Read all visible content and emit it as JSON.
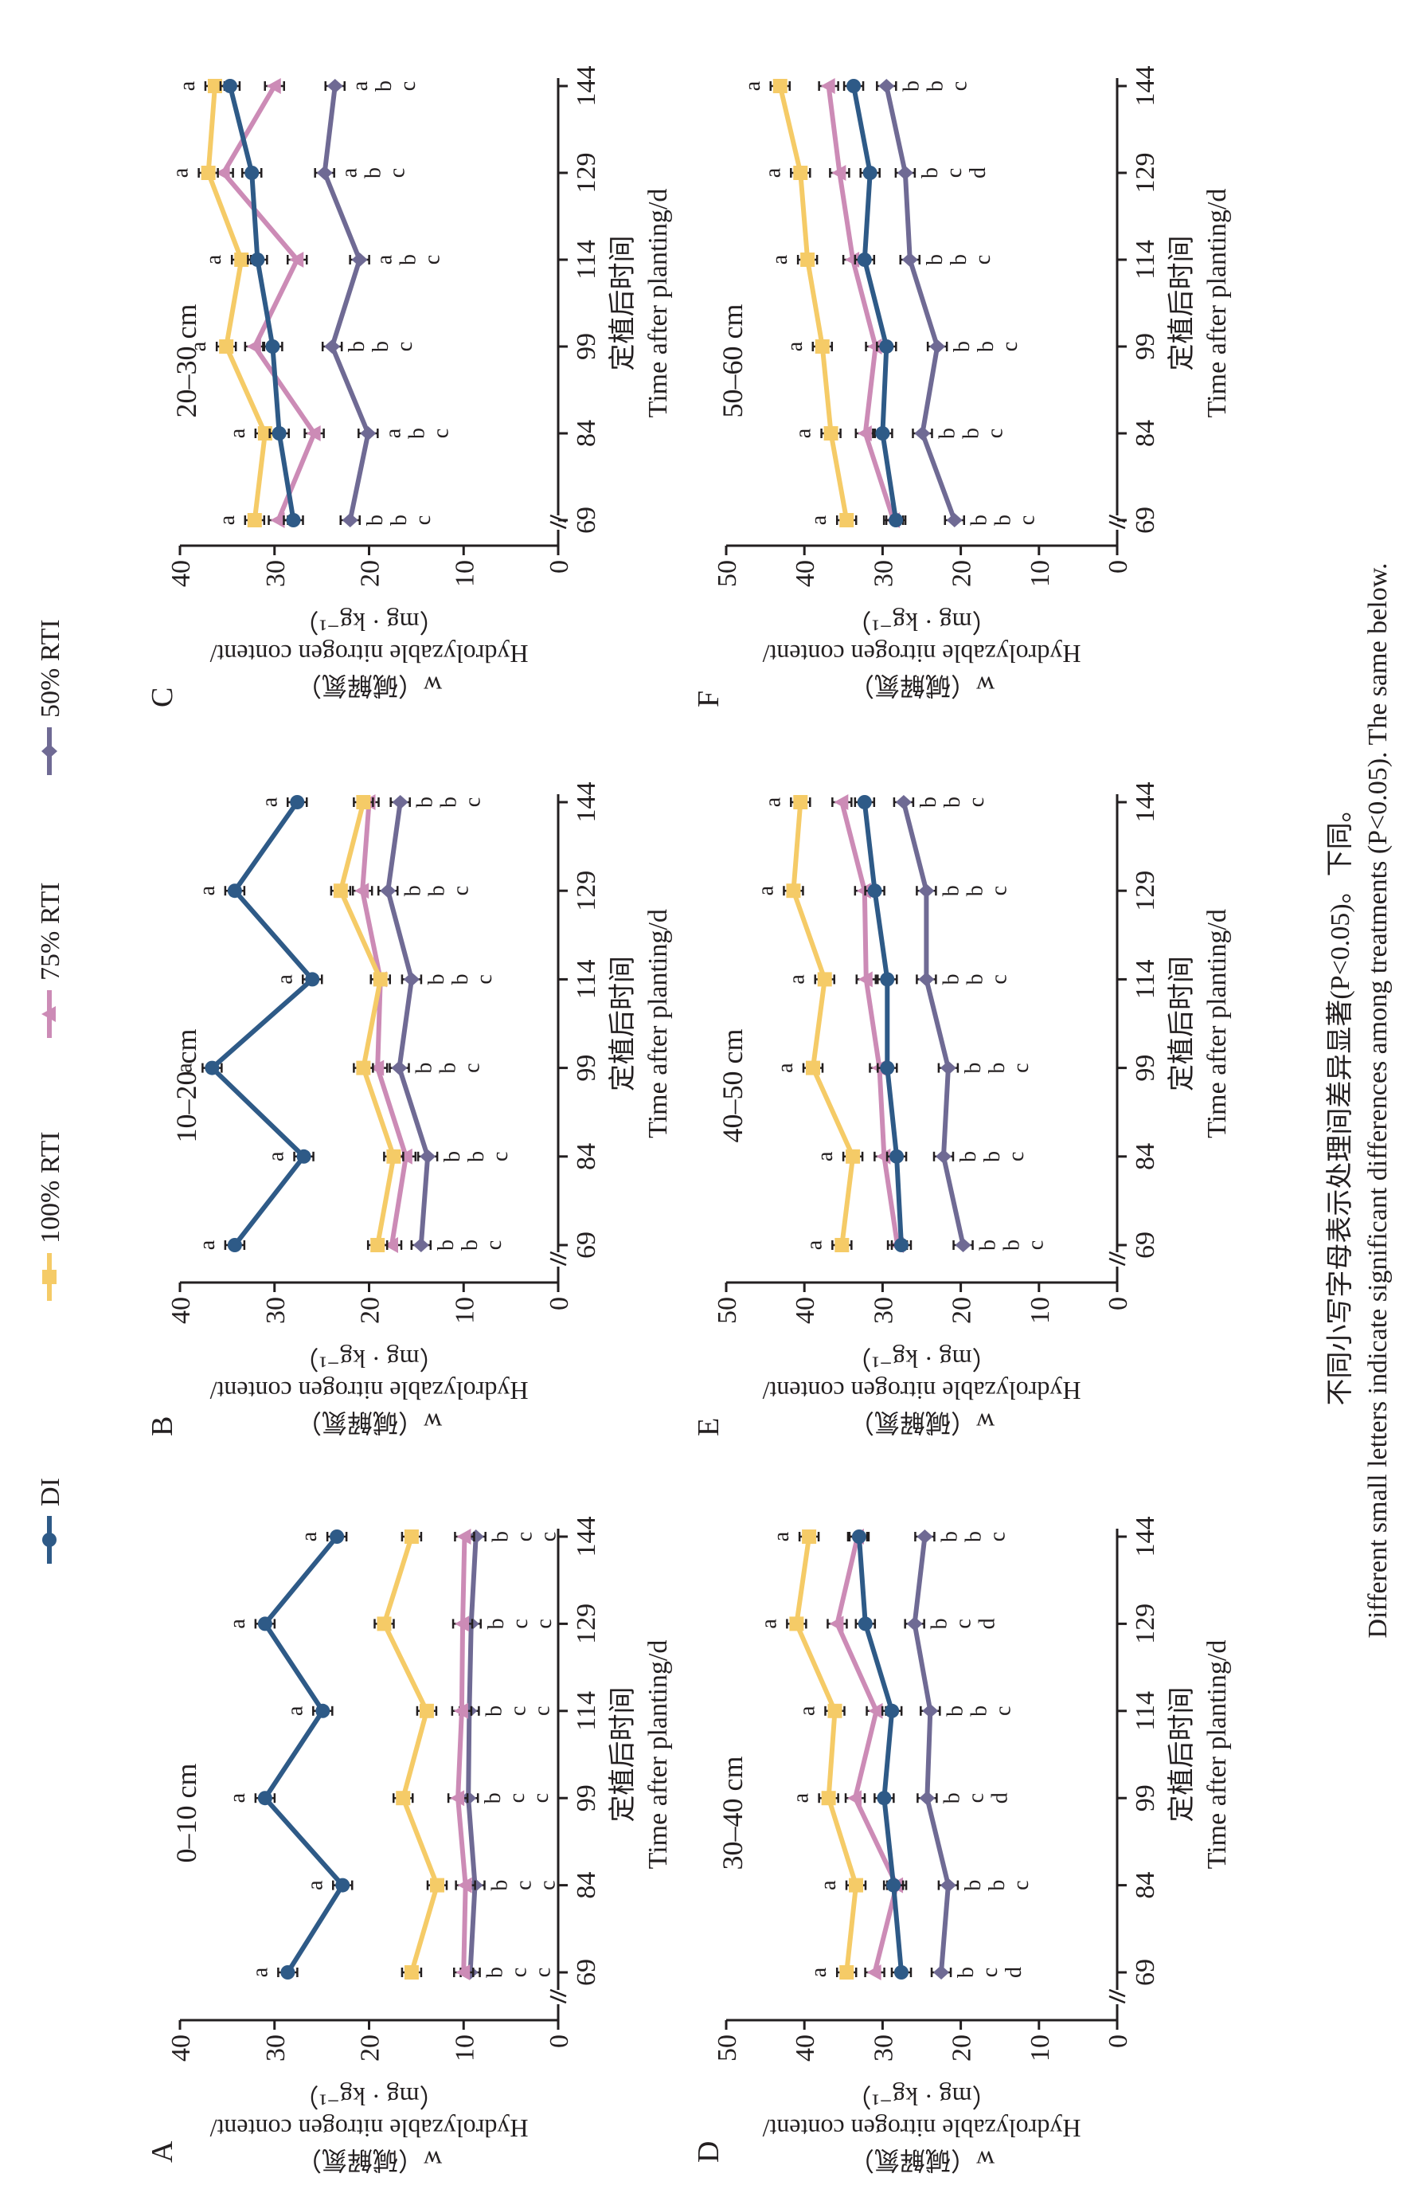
{
  "figure": {
    "caption_cn": "不同小写字母表示处理间差异显著(P<0.05)。下同。",
    "caption_en": "Different small letters indicate significant differences among treatments (P<0.05). The same below."
  },
  "legend": [
    {
      "name": "DI",
      "marker": "circle",
      "color": "#2e5a87"
    },
    {
      "name": "100% RTI",
      "marker": "square",
      "color": "#f5cb67"
    },
    {
      "name": "75% RTI",
      "marker": "triangle",
      "color": "#cc8bb6"
    },
    {
      "name": "50% RTI",
      "marker": "diamond",
      "color": "#6f6a94"
    }
  ],
  "chart_data": [
    {
      "type": "line",
      "panel": "A",
      "title": "0–10 cm",
      "xlabel_cn": "定植后时间",
      "xlabel_en": "Time after planting/d",
      "ylabel_cn": "w（碱解氮）",
      "ylabel_en": "Hydrolyzable nitrogen content/",
      "ylabel_unit": "（mg · kg⁻¹）",
      "x": [
        69,
        84,
        99,
        114,
        129,
        144
      ],
      "ylim": [
        0,
        40
      ],
      "yticks": [
        0,
        10,
        20,
        30,
        40
      ],
      "axis_break": true,
      "series": [
        {
          "name": "DI",
          "values": [
            28.6,
            22.8,
            31.0,
            24.9,
            31.0,
            23.4
          ]
        },
        {
          "name": "100% RTI",
          "values": [
            15.5,
            12.8,
            16.4,
            13.9,
            18.4,
            15.5
          ]
        },
        {
          "name": "75% RTI",
          "values": [
            10.0,
            9.8,
            10.6,
            10.2,
            10.1,
            9.9
          ]
        },
        {
          "name": "50% RTI",
          "values": [
            9.3,
            8.8,
            9.5,
            9.4,
            9.2,
            8.7
          ]
        }
      ],
      "letters": [
        [
          "a",
          "b",
          "c",
          "c"
        ],
        [
          "a",
          "b",
          "c",
          "c"
        ],
        [
          "a",
          "b",
          "c",
          "c"
        ],
        [
          "a",
          "b",
          "c",
          "c"
        ],
        [
          "a",
          "b",
          "c",
          "c"
        ],
        [
          "a",
          "b",
          "c",
          "c"
        ]
      ]
    },
    {
      "type": "line",
      "panel": "B",
      "title": "10–20 cm",
      "xlabel_cn": "定植后时间",
      "xlabel_en": "Time after planting/d",
      "ylabel_cn": "w（碱解氮）",
      "ylabel_en": "Hydrolyzable nitrogen content/",
      "ylabel_unit": "（mg · kg⁻¹）",
      "x": [
        69,
        84,
        99,
        114,
        129,
        144
      ],
      "ylim": [
        0,
        40
      ],
      "yticks": [
        0,
        10,
        20,
        30,
        40
      ],
      "axis_break": true,
      "series": [
        {
          "name": "DI",
          "values": [
            34.2,
            26.9,
            36.6,
            26.0,
            34.2,
            27.6
          ]
        },
        {
          "name": "100% RTI",
          "values": [
            19.1,
            17.4,
            20.6,
            18.8,
            23.0,
            20.6
          ]
        },
        {
          "name": "75% RTI",
          "values": [
            17.6,
            16.1,
            19.1,
            18.8,
            20.7,
            20.0
          ]
        },
        {
          "name": "50% RTI",
          "values": [
            14.5,
            13.8,
            16.8,
            15.5,
            18.0,
            16.7
          ]
        }
      ],
      "letters": [
        [
          "a",
          "b",
          "b",
          "c"
        ],
        [
          "a",
          "b",
          "b",
          "c"
        ],
        [
          "a",
          "b",
          "b",
          "c"
        ],
        [
          "a",
          "b",
          "b",
          "c"
        ],
        [
          "a",
          "b",
          "b",
          "c"
        ],
        [
          "a",
          "b",
          "b",
          "c"
        ]
      ]
    },
    {
      "type": "line",
      "panel": "C",
      "title": "20–30 cm",
      "xlabel_cn": "定植后时间",
      "xlabel_en": "Time after planting/d",
      "ylabel_cn": "w（碱解氮）",
      "ylabel_en": "Hydrolyzable nitrogen content/",
      "ylabel_unit": "（mg · kg⁻¹）",
      "x": [
        69,
        84,
        99,
        114,
        129,
        144
      ],
      "ylim": [
        0,
        40
      ],
      "yticks": [
        0,
        10,
        20,
        30,
        40
      ],
      "axis_break": true,
      "series": [
        {
          "name": "DI",
          "values": [
            28.0,
            29.5,
            30.2,
            31.8,
            32.4,
            34.7
          ]
        },
        {
          "name": "100% RTI",
          "values": [
            32.1,
            31.0,
            35.1,
            33.5,
            37.0,
            36.3
          ]
        },
        {
          "name": "75% RTI",
          "values": [
            29.6,
            25.8,
            32.1,
            27.6,
            35.4,
            30.0
          ]
        },
        {
          "name": "50% RTI",
          "values": [
            22.0,
            20.1,
            23.9,
            21.0,
            24.7,
            23.6
          ]
        }
      ],
      "letters": [
        [
          "a",
          "b",
          "b",
          "c"
        ],
        [
          "a",
          "a",
          "b",
          "c"
        ],
        [
          "a",
          "b",
          "b",
          "c"
        ],
        [
          "a",
          "a",
          "b",
          "c"
        ],
        [
          "a",
          "a",
          "b",
          "c"
        ],
        [
          "a",
          "a",
          "b",
          "c"
        ]
      ]
    },
    {
      "type": "line",
      "panel": "D",
      "title": "30–40 cm",
      "xlabel_cn": "定植后时间",
      "xlabel_en": "Time after planting/d",
      "ylabel_cn": "w（碱解氮）",
      "ylabel_en": "Hydrolyzable nitrogen content/",
      "ylabel_unit": "（mg · kg⁻¹）",
      "x": [
        69,
        84,
        99,
        114,
        129,
        144
      ],
      "ylim": [
        0,
        50
      ],
      "yticks": [
        0,
        10,
        20,
        30,
        40,
        50
      ],
      "axis_break": true,
      "series": [
        {
          "name": "DI",
          "values": [
            27.6,
            28.6,
            29.8,
            28.8,
            32.2,
            33.0
          ]
        },
        {
          "name": "100% RTI",
          "values": [
            34.6,
            33.4,
            36.9,
            36.1,
            41.0,
            39.4
          ]
        },
        {
          "name": "75% RTI",
          "values": [
            31.0,
            28.2,
            33.5,
            30.8,
            35.8,
            33.2
          ]
        },
        {
          "name": "50% RTI",
          "values": [
            22.5,
            21.6,
            24.3,
            23.9,
            25.9,
            24.6
          ]
        }
      ],
      "letters": [
        [
          "a",
          "b",
          "c",
          "d"
        ],
        [
          "a",
          "b",
          "b",
          "c"
        ],
        [
          "a",
          "b",
          "c",
          "d"
        ],
        [
          "a",
          "b",
          "b",
          "c"
        ],
        [
          "a",
          "b",
          "c",
          "d"
        ],
        [
          "a",
          "b",
          "b",
          "c"
        ]
      ]
    },
    {
      "type": "line",
      "panel": "E",
      "title": "40–50 cm",
      "xlabel_cn": "定植后时间",
      "xlabel_en": "Time after planting/d",
      "ylabel_cn": "w（碱解氮）",
      "ylabel_en": "Hydrolyzable nitrogen content/",
      "ylabel_unit": "（mg · kg⁻¹）",
      "x": [
        69,
        84,
        99,
        114,
        129,
        144
      ],
      "ylim": [
        0,
        50
      ],
      "yticks": [
        0,
        10,
        20,
        30,
        40,
        50
      ],
      "axis_break": true,
      "series": [
        {
          "name": "DI",
          "values": [
            27.6,
            28.2,
            29.4,
            29.4,
            31.0,
            32.3
          ]
        },
        {
          "name": "100% RTI",
          "values": [
            35.2,
            33.8,
            38.9,
            37.4,
            41.4,
            40.5
          ]
        },
        {
          "name": "75% RTI",
          "values": [
            28.1,
            29.8,
            30.4,
            32.1,
            32.3,
            35.2
          ]
        },
        {
          "name": "50% RTI",
          "values": [
            19.7,
            22.2,
            21.6,
            24.4,
            24.4,
            27.3
          ]
        }
      ],
      "letters": [
        [
          "a",
          "b",
          "b",
          "c"
        ],
        [
          "a",
          "b",
          "b",
          "c"
        ],
        [
          "a",
          "b",
          "b",
          "c"
        ],
        [
          "a",
          "b",
          "b",
          "c"
        ],
        [
          "a",
          "b",
          "b",
          "c"
        ],
        [
          "a",
          "b",
          "b",
          "c"
        ]
      ]
    },
    {
      "type": "line",
      "panel": "F",
      "title": "50–60 cm",
      "xlabel_cn": "定植后时间",
      "xlabel_en": "Time after planting/d",
      "ylabel_cn": "w（碱解氮）",
      "ylabel_en": "Hydrolyzable nitrogen content/",
      "ylabel_unit": "（mg · kg⁻¹）",
      "x": [
        69,
        84,
        99,
        114,
        129,
        144
      ],
      "ylim": [
        0,
        50
      ],
      "yticks": [
        0,
        10,
        20,
        30,
        40,
        50
      ],
      "axis_break": true,
      "series": [
        {
          "name": "DI",
          "values": [
            28.3,
            30.0,
            29.5,
            32.3,
            31.6,
            33.7
          ]
        },
        {
          "name": "100% RTI",
          "values": [
            34.6,
            36.6,
            37.7,
            39.6,
            40.5,
            43.1
          ]
        },
        {
          "name": "75% RTI",
          "values": [
            28.6,
            32.2,
            30.9,
            33.8,
            35.5,
            36.9
          ]
        },
        {
          "name": "50% RTI",
          "values": [
            20.8,
            24.9,
            23.0,
            26.5,
            27.1,
            29.5
          ]
        }
      ],
      "letters": [
        [
          "a",
          "b",
          "b",
          "c"
        ],
        [
          "a",
          "b",
          "b",
          "c"
        ],
        [
          "a",
          "b",
          "b",
          "c"
        ],
        [
          "a",
          "b",
          "b",
          "c"
        ],
        [
          "a",
          "b",
          "c",
          "d"
        ],
        [
          "a",
          "b",
          "b",
          "c"
        ]
      ]
    }
  ]
}
